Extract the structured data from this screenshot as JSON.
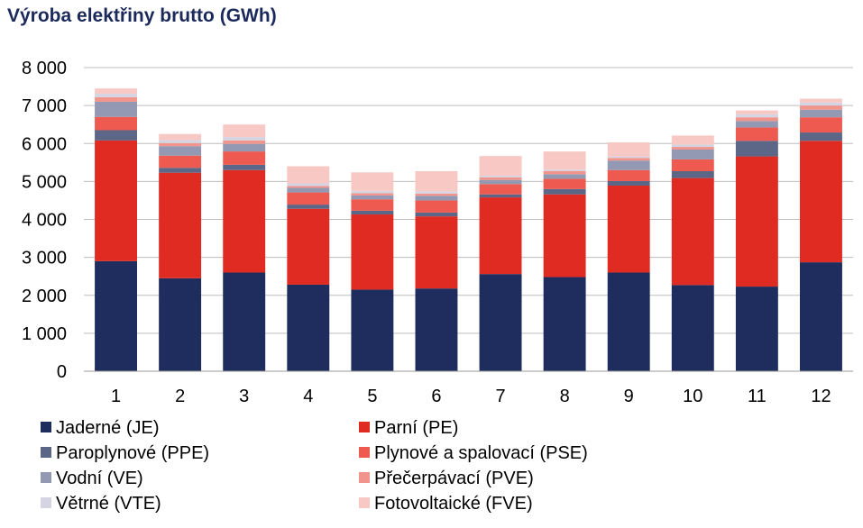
{
  "chart_data": {
    "type": "bar",
    "stacked": true,
    "title": "Výroba elektřiny brutto (GWh)",
    "xlabel": "",
    "ylabel": "",
    "ylim": [
      0,
      8000
    ],
    "y_ticks": [
      "0",
      "1 000",
      "2 000",
      "3 000",
      "4 000",
      "5 000",
      "6 000",
      "7 000",
      "8 000"
    ],
    "grid": true,
    "legend_position": "bottom",
    "categories": [
      "1",
      "2",
      "3",
      "4",
      "5",
      "6",
      "7",
      "8",
      "9",
      "10",
      "11",
      "12"
    ],
    "series": [
      {
        "name": "Jaderné (JE)",
        "color": "#1f2d5e",
        "values": [
          2900,
          2450,
          2600,
          2280,
          2150,
          2180,
          2560,
          2480,
          2600,
          2270,
          2230,
          2870
        ]
      },
      {
        "name": "Parní (PE)",
        "color": "#e02b22",
        "values": [
          3180,
          2780,
          2700,
          2000,
          1980,
          1900,
          2020,
          2180,
          2290,
          2820,
          3430,
          3200
        ]
      },
      {
        "name": "Paroplynové (PPE)",
        "color": "#5c6687",
        "values": [
          270,
          130,
          140,
          110,
          100,
          100,
          80,
          140,
          120,
          180,
          410,
          220
        ]
      },
      {
        "name": "Plynové a spalovací (PSE)",
        "color": "#ee5a4f",
        "values": [
          350,
          320,
          350,
          320,
          300,
          320,
          270,
          270,
          290,
          310,
          350,
          400
        ]
      },
      {
        "name": "Vodní (VE)",
        "color": "#9399b2",
        "values": [
          400,
          250,
          200,
          120,
          100,
          120,
          110,
          120,
          250,
          260,
          170,
          200
        ]
      },
      {
        "name": "Přečerpávací (PVE)",
        "color": "#f1958c",
        "values": [
          120,
          80,
          90,
          50,
          60,
          60,
          70,
          80,
          70,
          70,
          100,
          110
        ]
      },
      {
        "name": "Větrné (VTE)",
        "color": "#d4d4e2",
        "values": [
          90,
          80,
          90,
          70,
          60,
          60,
          40,
          40,
          40,
          60,
          80,
          80
        ]
      },
      {
        "name": "Fotovoltaické (FVE)",
        "color": "#f8c9c4",
        "values": [
          140,
          160,
          330,
          450,
          490,
          530,
          520,
          480,
          370,
          240,
          100,
          100
        ]
      }
    ]
  }
}
